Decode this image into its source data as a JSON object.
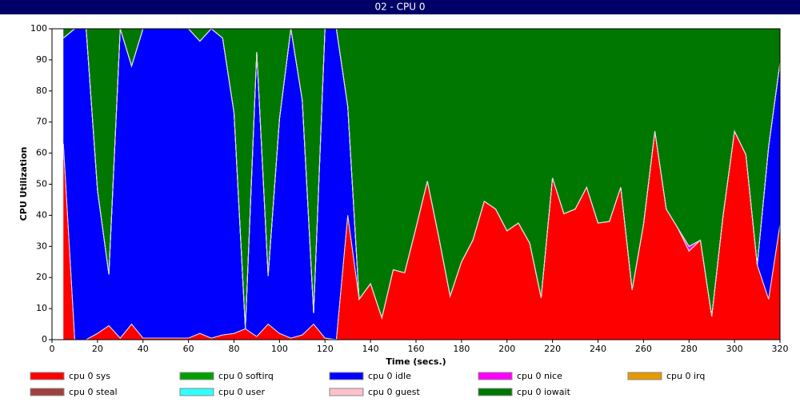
{
  "chart_data": {
    "type": "stacked_area",
    "title": "02 - CPU 0",
    "xlabel": "Time (secs.)",
    "ylabel": "CPU Utilization",
    "x": [
      5,
      10,
      15,
      20,
      25,
      30,
      35,
      40,
      45,
      50,
      55,
      60,
      65,
      70,
      75,
      80,
      85,
      90,
      95,
      100,
      105,
      110,
      115,
      120,
      125,
      130,
      135,
      140,
      145,
      150,
      155,
      160,
      165,
      170,
      175,
      180,
      185,
      190,
      195,
      200,
      205,
      210,
      215,
      220,
      225,
      230,
      235,
      240,
      245,
      250,
      255,
      260,
      265,
      270,
      275,
      280,
      285,
      290,
      295,
      300,
      305,
      310,
      315,
      320
    ],
    "xlim": [
      0,
      320
    ],
    "xticks": [
      0,
      20,
      40,
      60,
      80,
      100,
      120,
      140,
      160,
      180,
      200,
      220,
      240,
      260,
      280,
      300,
      320
    ],
    "ylim": [
      0,
      100
    ],
    "yticks": [
      0,
      10,
      20,
      30,
      40,
      50,
      60,
      70,
      80,
      90,
      100
    ],
    "series": [
      {
        "name": "cpu 0 sys",
        "color": "#ff0000",
        "values": [
          63,
          0,
          0,
          2,
          4.5,
          0.5,
          5,
          0.5,
          0.5,
          0.5,
          0.5,
          0.5,
          2,
          0.5,
          1.5,
          2,
          3.5,
          1,
          5,
          2,
          0.5,
          1.5,
          5,
          0.5,
          0,
          40,
          13,
          18,
          7,
          22.5,
          21.5,
          36,
          51,
          33,
          14,
          25,
          32,
          44.5,
          42,
          35,
          37.5,
          31,
          13.5,
          52,
          40.5,
          42,
          49,
          37.5,
          38,
          49,
          16,
          37,
          67,
          42,
          36,
          28.5,
          32,
          7.5,
          40,
          67,
          59.5,
          24,
          13,
          37
        ]
      },
      {
        "name": "cpu 0 softirq",
        "color": "#00a000",
        "values": [
          0,
          0,
          0,
          0,
          0,
          0,
          0,
          0,
          0,
          0,
          0,
          0,
          0,
          0,
          0,
          0,
          0,
          0,
          0,
          0,
          0,
          0,
          0,
          0,
          0,
          0,
          0,
          0,
          0,
          0,
          0,
          0,
          0,
          0,
          0,
          0,
          0,
          0,
          0,
          0,
          0,
          0,
          0,
          0,
          0,
          0,
          0,
          0,
          0,
          0,
          0,
          0,
          0,
          0,
          0,
          0,
          0,
          0,
          0,
          0,
          0,
          0,
          0,
          0
        ]
      },
      {
        "name": "cpu 0 idle",
        "color": "#0000ff",
        "values": [
          34,
          100,
          100,
          46,
          16.5,
          99.5,
          83,
          99.5,
          99.5,
          99.5,
          99.5,
          99.5,
          94,
          99.5,
          95.5,
          71,
          0,
          91.5,
          15.5,
          69,
          99.5,
          75.5,
          3.5,
          99.5,
          100,
          35,
          0,
          0,
          0,
          0,
          0,
          0,
          0,
          0,
          0,
          0,
          0,
          0,
          0,
          0,
          0,
          0,
          0,
          0,
          0,
          0,
          0,
          0,
          0,
          0,
          0,
          0,
          0,
          0,
          0,
          0,
          0,
          0,
          0,
          0,
          0,
          0,
          49,
          52
        ]
      },
      {
        "name": "cpu 0 nice",
        "color": "#ff00ff",
        "values": [
          0,
          0,
          0,
          0,
          0,
          0,
          0,
          0,
          0,
          0,
          0,
          0,
          0,
          0,
          0,
          0,
          0,
          0,
          0,
          0,
          0,
          0,
          0,
          0,
          0,
          0,
          0,
          0,
          0,
          0,
          0,
          0,
          0,
          0,
          0,
          0,
          0,
          0,
          0,
          0,
          0,
          0,
          0,
          0,
          0,
          0,
          0,
          0,
          0,
          0,
          0,
          0,
          0,
          0,
          0,
          1.5,
          0,
          0,
          0,
          0,
          0,
          0,
          0,
          0
        ]
      },
      {
        "name": "cpu 0 irq",
        "color": "#e69a00",
        "values": [
          0,
          0,
          0,
          0,
          0,
          0,
          0,
          0,
          0,
          0,
          0,
          0,
          0,
          0,
          0,
          0,
          0,
          0,
          0,
          0,
          0,
          0,
          0,
          0,
          0,
          0,
          0,
          0,
          0,
          0,
          0,
          0,
          0,
          0,
          0,
          0,
          0,
          0,
          0,
          0,
          0,
          0,
          0,
          0,
          0,
          0,
          0,
          0,
          0,
          0,
          0,
          0,
          0,
          0,
          0,
          0,
          0,
          0,
          0,
          0,
          0,
          0,
          0,
          0
        ]
      },
      {
        "name": "cpu 0 steal",
        "color": "#a0403f",
        "values": [
          0,
          0,
          0,
          0,
          0,
          0,
          0,
          0,
          0,
          0,
          0,
          0,
          0,
          0,
          0,
          0,
          0,
          0,
          0,
          0,
          0,
          0,
          0,
          0,
          0,
          0,
          0,
          0,
          0,
          0,
          0,
          0,
          0,
          0,
          0,
          0,
          0,
          0,
          0,
          0,
          0,
          0,
          0,
          0,
          0,
          0,
          0,
          0,
          0,
          0,
          0,
          0,
          0,
          0,
          0,
          0,
          0,
          0,
          0,
          0,
          0,
          0,
          0,
          0
        ]
      },
      {
        "name": "cpu 0 user",
        "color": "#33ffff",
        "values": [
          0,
          0,
          0,
          0,
          0,
          0,
          0,
          0,
          0,
          0,
          0,
          0,
          0,
          0,
          0,
          0,
          0,
          0,
          0,
          0,
          0,
          0,
          0,
          0,
          0,
          0,
          0,
          0,
          0,
          0,
          0,
          0,
          0,
          0,
          0,
          0,
          0,
          0,
          0,
          0,
          0,
          0,
          0,
          0,
          0,
          0,
          0,
          0,
          0,
          0,
          0,
          0,
          0,
          0,
          0,
          0,
          0,
          0,
          0,
          0,
          0,
          0,
          0,
          0
        ]
      },
      {
        "name": "cpu 0 guest",
        "color": "#ffc0cb",
        "values": [
          0,
          0,
          0,
          0,
          0,
          0,
          0,
          0,
          0,
          0,
          0,
          0,
          0,
          0,
          0,
          0,
          0,
          0,
          0,
          0,
          0,
          0,
          0,
          0,
          0,
          0,
          0,
          0,
          0,
          0,
          0,
          0,
          0,
          0,
          0,
          0,
          0,
          0,
          0,
          0,
          0,
          0,
          0,
          0,
          0,
          0,
          0,
          0,
          0,
          0,
          0,
          0,
          0,
          0,
          0,
          0,
          0,
          0,
          0,
          0,
          0,
          0,
          0,
          0
        ]
      },
      {
        "name": "cpu 0 iowait",
        "color": "#007700",
        "values": [
          3,
          0,
          0,
          52,
          79,
          0,
          12,
          0,
          0,
          0,
          0,
          0,
          4,
          0,
          3,
          27,
          96.5,
          7.5,
          79.5,
          29,
          0,
          23,
          91.5,
          0,
          0,
          25,
          87,
          82,
          93,
          77.5,
          78.5,
          64,
          49,
          67,
          86,
          75,
          68,
          55.5,
          58,
          65,
          62.5,
          69,
          86.5,
          48,
          59.5,
          58,
          51,
          62.5,
          62,
          51,
          84,
          63,
          33,
          58,
          64,
          70,
          68,
          92.5,
          60,
          33,
          40.5,
          76,
          38,
          11
        ]
      }
    ]
  }
}
